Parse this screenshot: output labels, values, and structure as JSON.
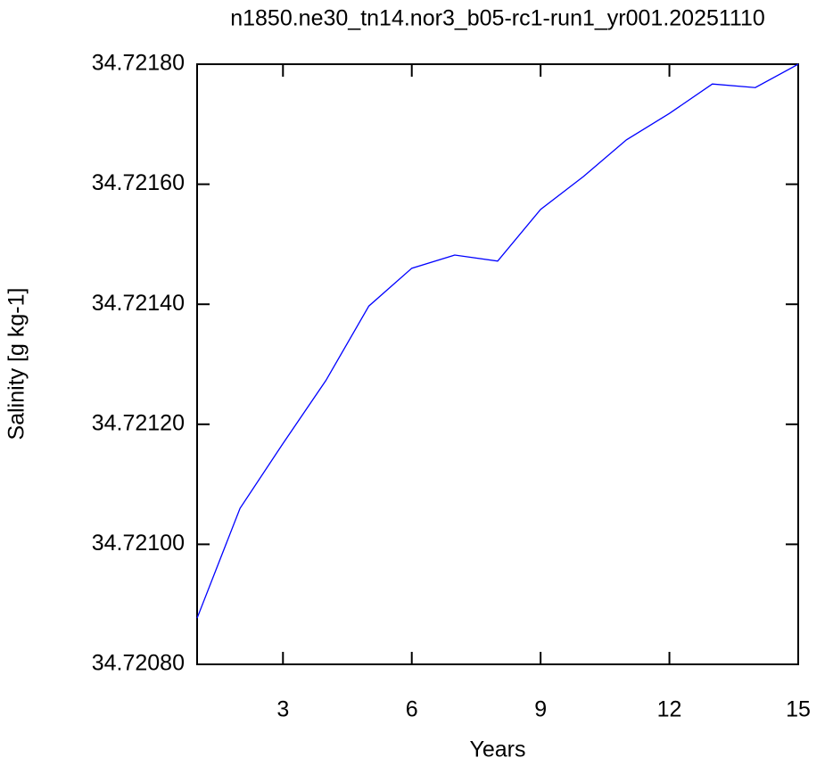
{
  "chart_data": {
    "type": "line",
    "title": "n1850.ne30_tn14.nor3_b05-rc1-run1_yr001.20251110",
    "x_label": "Years",
    "y_label": "Salinity [g kg-1]",
    "x": [
      1,
      2,
      3,
      4,
      5,
      6,
      7,
      8,
      9,
      10,
      11,
      12,
      13,
      14,
      15
    ],
    "series": [
      {
        "color": "#0000ff",
        "values": [
          34.720877,
          34.72106,
          34.721168,
          34.721273,
          34.721397,
          34.72146,
          34.721482,
          34.721472,
          34.721558,
          34.721613,
          34.721674,
          34.721718,
          34.721767,
          34.721761,
          34.7218
        ]
      }
    ],
    "xlim": [
      1,
      15
    ],
    "xticks": [
      3,
      6,
      9,
      12,
      15
    ],
    "ylim": [
      34.7208,
      34.7218
    ],
    "yticks": [
      {
        "value": 34.7208,
        "label": "34.72080"
      },
      {
        "value": 34.721,
        "label": "34.72100"
      },
      {
        "value": 34.7212,
        "label": "34.72120"
      },
      {
        "value": 34.7214,
        "label": "34.72140"
      },
      {
        "value": 34.7216,
        "label": "34.72160"
      },
      {
        "value": 34.7218,
        "label": "34.72180"
      }
    ]
  }
}
